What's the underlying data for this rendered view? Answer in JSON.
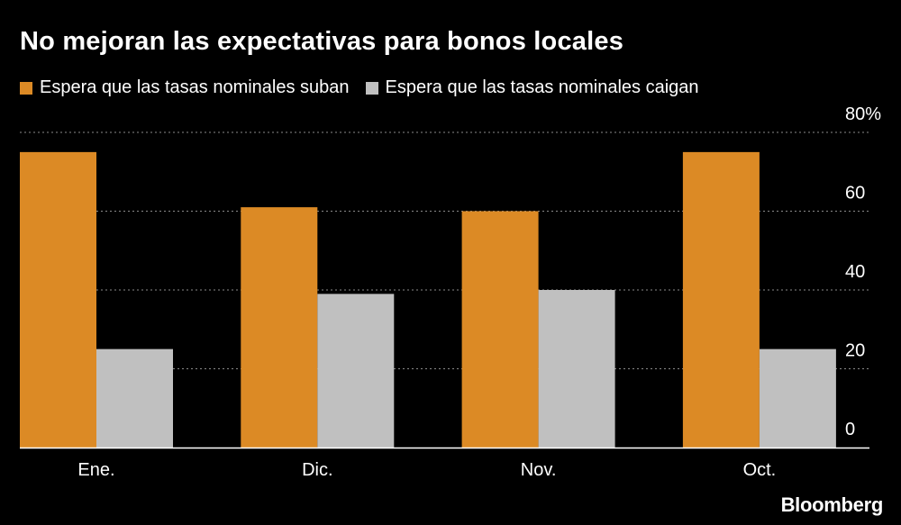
{
  "chart_data": {
    "type": "bar",
    "title": "No mejoran las expectativas para bonos locales",
    "categories": [
      "Ene.",
      "Dic.",
      "Nov.",
      "Oct."
    ],
    "series": [
      {
        "name": "Espera que las tasas nominales suban",
        "color": "#dc8a25",
        "values": [
          75,
          61,
          60,
          75
        ]
      },
      {
        "name": "Espera que las tasas nominales caigan",
        "color": "#c0c0c0",
        "values": [
          25,
          39,
          40,
          25
        ]
      }
    ],
    "ylim": [
      0,
      80
    ],
    "yticks": [
      "0",
      "20",
      "40",
      "60",
      "80%"
    ],
    "ytick_values": [
      0,
      20,
      40,
      60,
      80
    ],
    "grid": true,
    "legend_position": "top-left",
    "yaxis_position": "right",
    "xlabel": "",
    "ylabel": ""
  },
  "source": "Bloomberg"
}
